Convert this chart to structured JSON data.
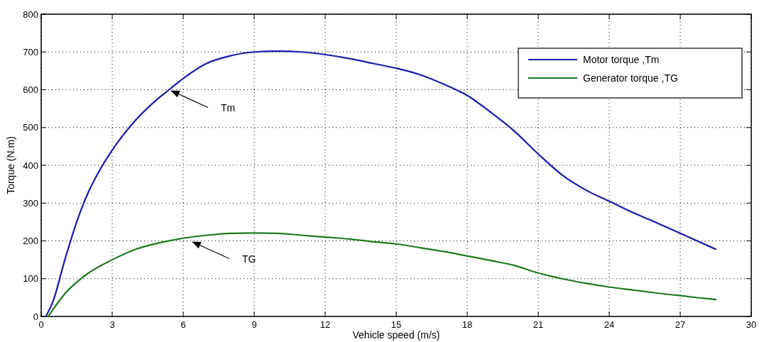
{
  "chart_data": {
    "type": "line",
    "xlabel": "Vehicle speed (m/s)",
    "ylabel": "Torque (N.m)",
    "xlim": [
      0,
      30
    ],
    "xticks": [
      0,
      3,
      6,
      9,
      12,
      15,
      18,
      21,
      24,
      27,
      30
    ],
    "ylim": [
      0,
      800
    ],
    "yticks": [
      0,
      100,
      200,
      300,
      400,
      500,
      600,
      700,
      800
    ],
    "grid": true,
    "legend": "top right",
    "line_style": "solid",
    "marker": "none",
    "annotations": [
      {
        "text": "Tm",
        "x": 5.4,
        "y": 600
      },
      {
        "text": "TG",
        "x": 6.3,
        "y": 200
      }
    ],
    "series": [
      {
        "name": "Motor torque ,Tm",
        "color": "#1a1aa8",
        "x": [
          0.2,
          0.5,
          1,
          1.5,
          2,
          2.5,
          3,
          4,
          5,
          5.4,
          6,
          7,
          8,
          9,
          10,
          11,
          12,
          13,
          14,
          15,
          16,
          17,
          18,
          19,
          20,
          21,
          22,
          23,
          24,
          25,
          26,
          27,
          28,
          28.5
        ],
        "values": [
          0,
          40,
          150,
          250,
          330,
          390,
          440,
          520,
          580,
          600,
          630,
          670,
          690,
          700,
          702,
          700,
          693,
          683,
          670,
          657,
          640,
          615,
          585,
          540,
          490,
          430,
          375,
          335,
          305,
          275,
          248,
          220,
          192,
          178
        ]
      },
      {
        "name": "Generator torque ,TG",
        "color": "#1e7a1e",
        "x": [
          0.3,
          1,
          2,
          3,
          4,
          5,
          6,
          7,
          8,
          9,
          10,
          11,
          12,
          13,
          14,
          15,
          16,
          17,
          18,
          19,
          20,
          21,
          22,
          23,
          24,
          25,
          26,
          27,
          28,
          28.5
        ],
        "values": [
          0,
          60,
          115,
          150,
          178,
          195,
          207,
          215,
          220,
          221,
          220,
          215,
          210,
          205,
          198,
          192,
          182,
          172,
          160,
          148,
          135,
          115,
          100,
          88,
          78,
          70,
          62,
          55,
          48,
          45
        ]
      }
    ]
  }
}
